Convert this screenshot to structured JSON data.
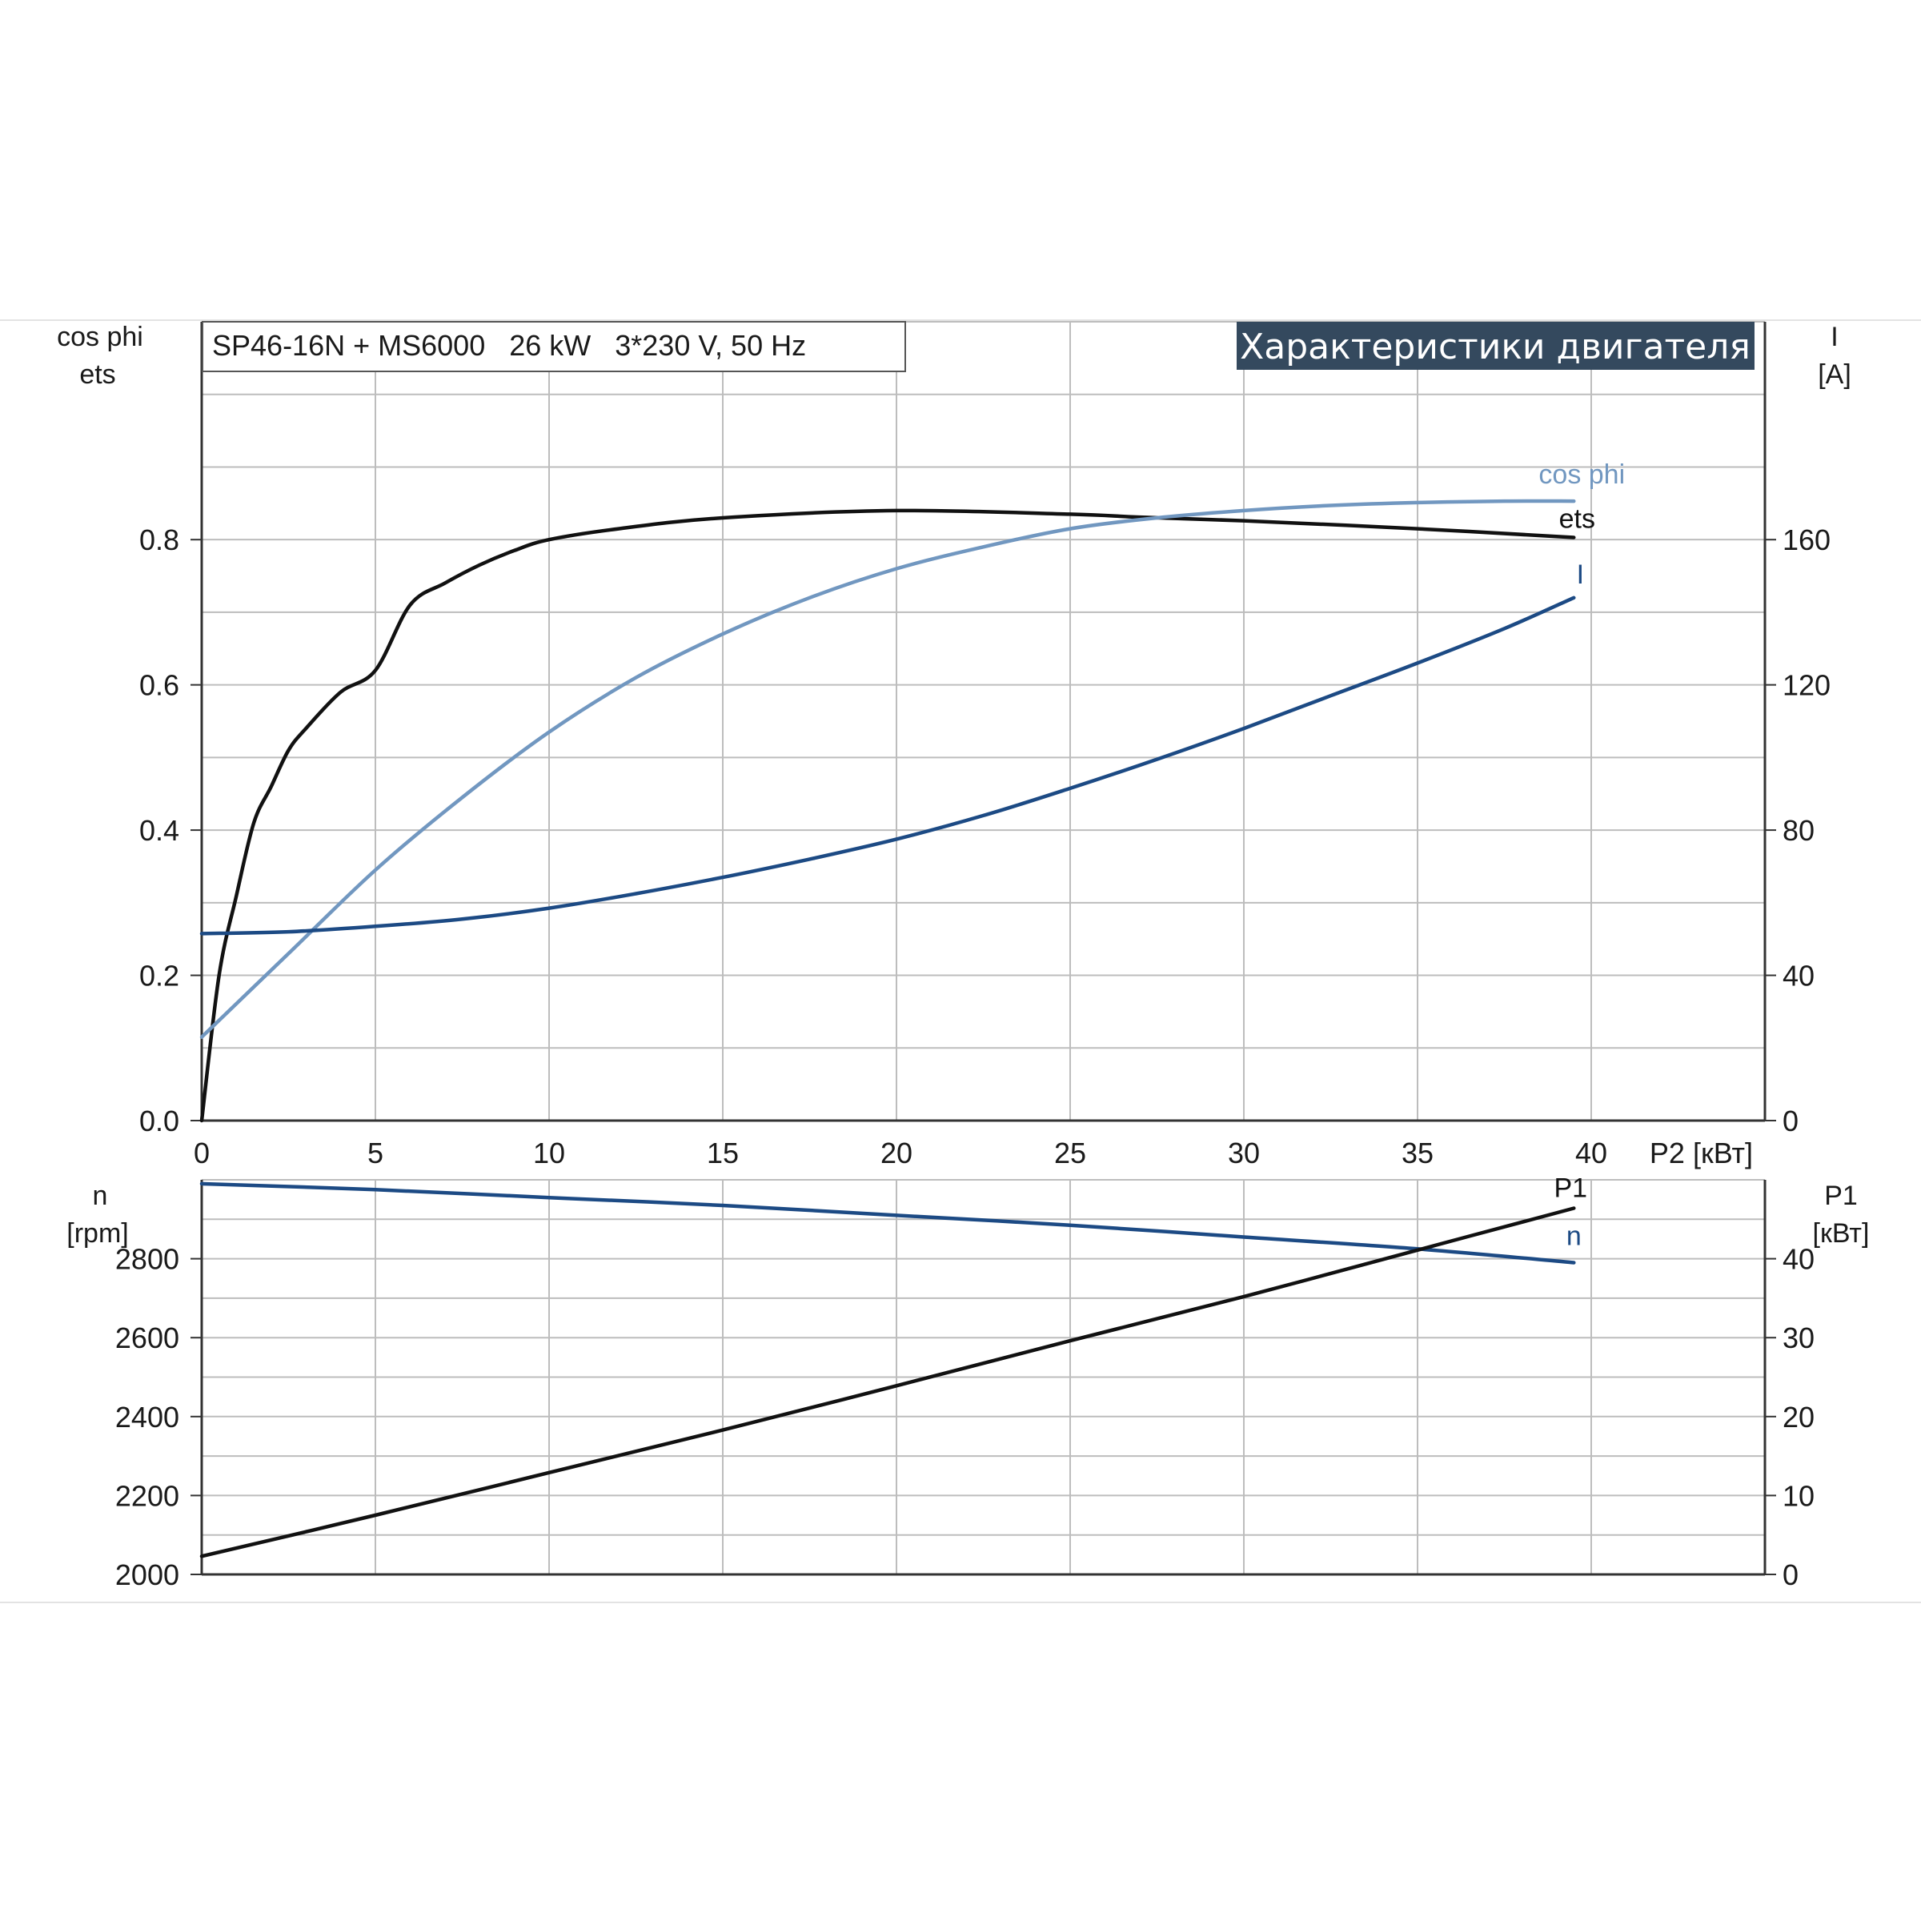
{
  "banner": {
    "title": "Характеристики двигателя",
    "background": "#34495e"
  },
  "info_box": {
    "text": "SP46-16N + MS6000   26 kW   3*230 V, 50 Hz"
  },
  "colors": {
    "ets": "#111111",
    "cos_phi": "#7197c0",
    "current": "#1c4a84",
    "speed": "#1c4a84",
    "p1": "#111111",
    "grid": "#bdbdbd",
    "axis": "#333333"
  },
  "chart_data": [
    {
      "type": "line",
      "xlabel": "P2 [кВт]",
      "xlim": [
        0,
        45
      ],
      "xticks": [
        "0",
        "5",
        "10",
        "15",
        "20",
        "25",
        "30",
        "35",
        "40"
      ],
      "xtick_values": [
        0,
        5,
        10,
        15,
        20,
        25,
        30,
        35,
        40
      ],
      "left_axis": {
        "label_line1": "cos phi",
        "label_line2": "ets",
        "ylim": [
          0,
          1.1
        ],
        "ticks": [
          "0.0",
          "0.2",
          "0.4",
          "0.6",
          "0.8"
        ],
        "tick_values": [
          0,
          0.2,
          0.4,
          0.6,
          0.8
        ]
      },
      "right_axis": {
        "label_line1": "I",
        "label_line2": "[A]",
        "ylim": [
          0,
          220
        ],
        "ticks": [
          "0",
          "40",
          "80",
          "120",
          "160"
        ],
        "tick_values": [
          0,
          40,
          80,
          120,
          160
        ]
      },
      "series": [
        {
          "name": "ets",
          "axis": "left",
          "x": [
            0,
            0.5,
            1,
            1.5,
            2,
            2.5,
            3,
            4,
            5,
            6,
            7,
            8,
            9,
            10,
            12,
            15,
            20,
            25,
            27,
            30,
            35,
            39.5
          ],
          "y": [
            0,
            0.2,
            0.31,
            0.41,
            0.46,
            0.51,
            0.54,
            0.59,
            0.62,
            0.71,
            0.74,
            0.765,
            0.785,
            0.8,
            0.815,
            0.83,
            0.84,
            0.835,
            0.831,
            0.826,
            0.815,
            0.803
          ]
        },
        {
          "name": "cos phi",
          "axis": "left",
          "x": [
            0,
            2.5,
            5,
            7.5,
            10,
            12.5,
            15,
            17.5,
            20,
            22.5,
            25,
            27.5,
            30,
            32.5,
            35,
            37.5,
            39.5
          ],
          "y": [
            0.115,
            0.23,
            0.345,
            0.445,
            0.535,
            0.61,
            0.67,
            0.72,
            0.76,
            0.79,
            0.815,
            0.83,
            0.84,
            0.847,
            0.851,
            0.853,
            0.853
          ]
        },
        {
          "name": "I",
          "axis": "right",
          "x": [
            0,
            2.5,
            5,
            7.5,
            10,
            12.5,
            15,
            17.5,
            20,
            22.5,
            25,
            27.5,
            30,
            32.5,
            35,
            37.5,
            39.5
          ],
          "y": [
            51.5,
            52,
            53.5,
            55.5,
            58.5,
            62.5,
            67,
            72,
            77.5,
            84,
            91.5,
            99.5,
            108,
            117,
            126,
            135.5,
            144
          ]
        }
      ]
    },
    {
      "type": "line",
      "xlim": [
        0,
        45
      ],
      "left_axis": {
        "label_line1": "n",
        "label_line2": "[rpm]",
        "ylim": [
          2000,
          3000
        ],
        "ticks": [
          "2000",
          "2200",
          "2400",
          "2600",
          "2800"
        ],
        "tick_values": [
          2000,
          2200,
          2400,
          2600,
          2800
        ]
      },
      "right_axis": {
        "label_line1": "P1",
        "label_line2": "[кВт]",
        "ylim": [
          0,
          50
        ],
        "ticks": [
          "0",
          "10",
          "20",
          "30",
          "40"
        ],
        "tick_values": [
          0,
          10,
          20,
          30,
          40
        ]
      },
      "series": [
        {
          "name": "n",
          "axis": "left",
          "x": [
            0,
            5,
            10,
            15,
            20,
            25,
            30,
            35,
            39.5
          ],
          "y": [
            2990,
            2975,
            2955,
            2935,
            2910,
            2885,
            2855,
            2825,
            2790
          ]
        },
        {
          "name": "P1",
          "axis": "right",
          "x": [
            0,
            5,
            10,
            15,
            20,
            25,
            30,
            35,
            39.5
          ],
          "y": [
            2.3,
            7.5,
            12.9,
            18.3,
            23.9,
            29.6,
            35.2,
            41.1,
            46.4
          ]
        }
      ]
    }
  ]
}
